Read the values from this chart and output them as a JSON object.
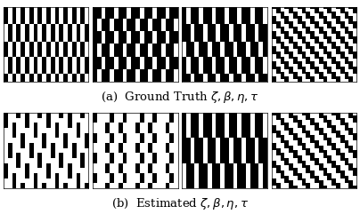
{
  "title_a": "(a)  Ground Truth $\\zeta, \\beta, \\eta, \\tau$",
  "title_b": "(b)  Estimated $\\zeta, \\beta, \\eta, \\tau$",
  "fig_width": 4.04,
  "fig_height": 2.5,
  "dpi": 100,
  "background": "#ffffff",
  "label_fontsize": 9.5,
  "rows": 30,
  "cols": 20
}
